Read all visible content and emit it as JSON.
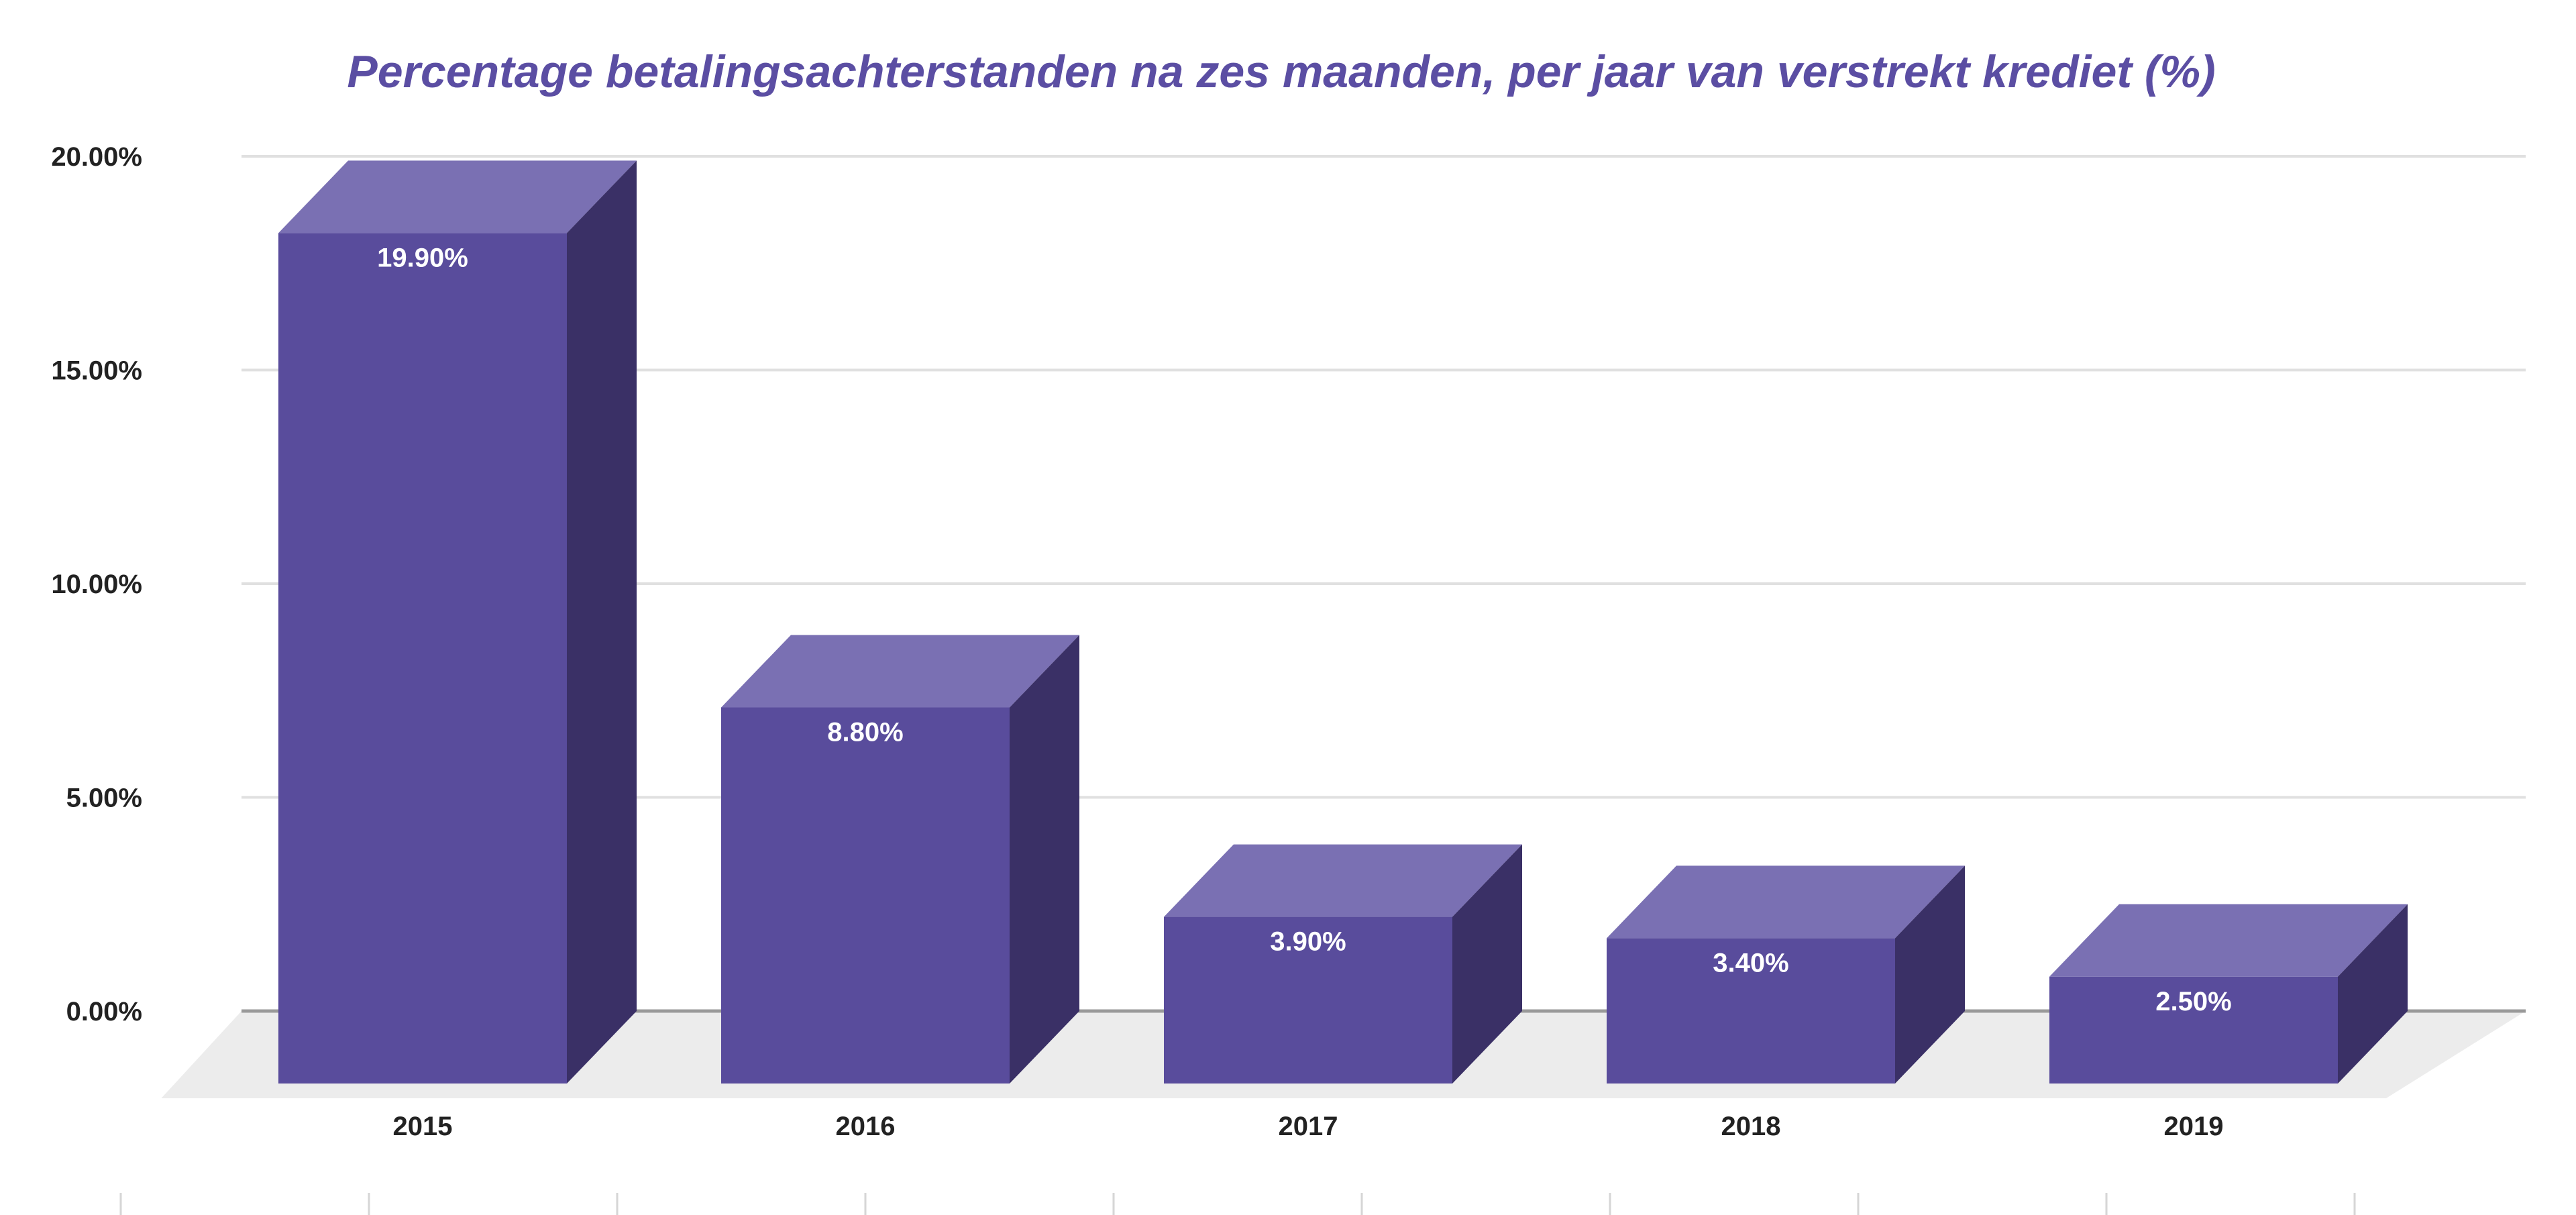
{
  "chart_data": {
    "type": "bar",
    "title": "Percentage betalingsachterstanden na zes maanden, per jaar van verstrekt krediet (%)",
    "xlabel": "",
    "ylabel": "",
    "categories": [
      "2015",
      "2016",
      "2017",
      "2018",
      "2019"
    ],
    "values": [
      19.9,
      8.8,
      3.9,
      3.4,
      2.5
    ],
    "data_labels": [
      "19.90%",
      "8.80%",
      "3.90%",
      "3.40%",
      "2.50%"
    ],
    "ylim": [
      0,
      20
    ],
    "yticks": [
      {
        "value": 0,
        "label": "0.00%"
      },
      {
        "value": 5,
        "label": "5.00%"
      },
      {
        "value": 10,
        "label": "10.00%"
      },
      {
        "value": 15,
        "label": "15.00%"
      },
      {
        "value": 20,
        "label": "20.00%"
      }
    ],
    "grid": true,
    "legend": "none",
    "style": "3d-bars",
    "colors": {
      "bar_front": "#594c9c",
      "bar_top": "#7a70b3",
      "bar_side": "#3a3066",
      "title": "#5b4ea3",
      "floor": "#ececec",
      "gridline": "#e0e0e0",
      "baseline": "#9a9a9a"
    }
  }
}
